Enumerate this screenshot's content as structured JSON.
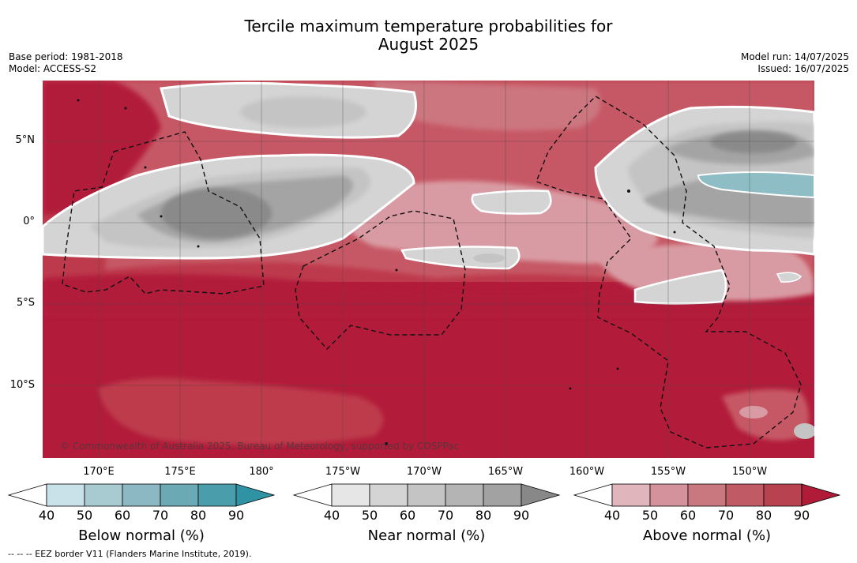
{
  "title": {
    "line1": "Tercile maximum temperature probabilities for",
    "line2": "August 2025"
  },
  "left_info": {
    "line1": "Base period: 1981-2018",
    "line2": "Model: ACCESS-S2"
  },
  "right_info": {
    "line1": "Model run: 14/07/2025",
    "line2": "Issued: 16/07/2025"
  },
  "latitude_labels": [
    "5°N",
    "0°",
    "5°S",
    "10°S"
  ],
  "longitude_labels": [
    "170°E",
    "175°E",
    "180°",
    "175°W",
    "170°W",
    "165°W",
    "160°W",
    "155°W",
    "150°W"
  ],
  "credit": "© Commonwealth of Australia 2025, Bureau of Meteorology, supported by COSPPac",
  "footnote": "-- -- -- EEZ border V11 (Flanders Marine Institute, 2019).",
  "colorbars": [
    {
      "label": "Below normal (%)",
      "ticks": [
        "40",
        "50",
        "60",
        "70",
        "80",
        "90"
      ],
      "colors": [
        "#ffffff",
        "#c9e1e8",
        "#a8cad1",
        "#8bb8c2",
        "#6baab5",
        "#4a9eab",
        "#2f93a3"
      ]
    },
    {
      "label": "Near normal (%)",
      "ticks": [
        "40",
        "50",
        "60",
        "70",
        "80",
        "90"
      ],
      "colors": [
        "#ffffff",
        "#e6e6e6",
        "#d4d4d4",
        "#c4c4c4",
        "#b4b4b4",
        "#a2a2a2",
        "#888888"
      ]
    },
    {
      "label": "Above normal (%)",
      "ticks": [
        "40",
        "50",
        "60",
        "70",
        "80",
        "90"
      ],
      "colors": [
        "#ffffff",
        "#e0b5bb",
        "#d4939c",
        "#c97880",
        "#c05b66",
        "#b8424f",
        "#b01c38"
      ]
    }
  ],
  "map_colors": {
    "above_90": "#b21c3a",
    "above_80": "#bd3a4c",
    "above_70": "#c65965",
    "above_60": "#cc767f",
    "above_50": "#d99ba3",
    "near_50": "#d4d4d4",
    "near_60": "#c4c4c4",
    "near_70": "#a4a4a4",
    "near_80": "#8a8a8a",
    "below_60": "#8fbdc6"
  }
}
